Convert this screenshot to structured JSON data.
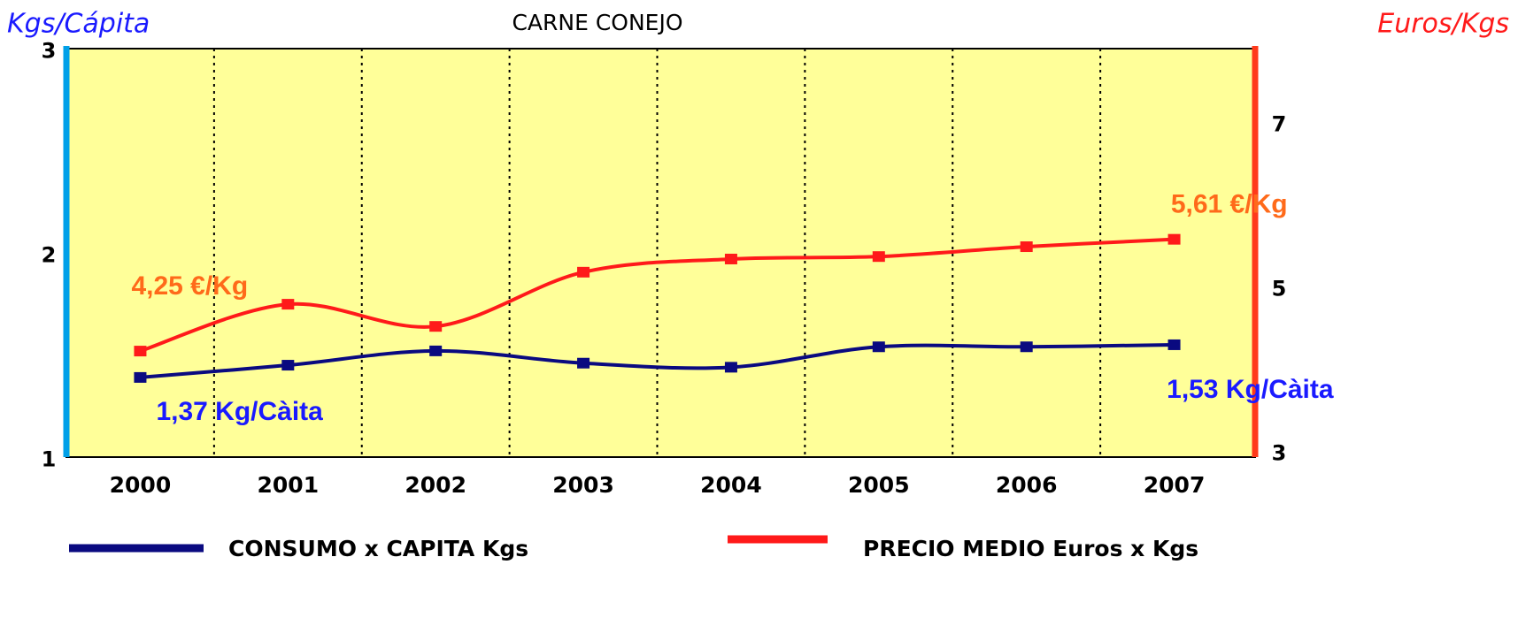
{
  "chart_data": {
    "type": "line",
    "title": "CARNE CONEJO",
    "y_label": "Kgs/Cápita",
    "y2_label": "Euros/Kgs",
    "categories": [
      "2000",
      "2001",
      "2002",
      "2003",
      "2004",
      "2005",
      "2006",
      "2007"
    ],
    "series": [
      {
        "name": "CONSUMO x CAPITA Kgs",
        "color": "#0a0a80",
        "values": [
          1.37,
          1.43,
          1.5,
          1.44,
          1.42,
          1.52,
          1.52,
          1.53
        ]
      },
      {
        "name": "PRECIO MEDIO Euros x Kgs",
        "color": "#ff1a1a",
        "axis": "y2",
        "values": [
          4.25,
          4.82,
          4.55,
          5.21,
          5.37,
          5.4,
          5.52,
          5.61
        ]
      }
    ],
    "annotations": [
      "1,37 Kg/Càita",
      "1,53 Kg/Càita",
      "4,25 €/Kg",
      "5,61 €/Kg"
    ],
    "ylim": [
      0.98,
      2.98
    ],
    "yticks": [
      1,
      2,
      3
    ],
    "y2lim": [
      2.96,
      7.93
    ],
    "y2ticks": [
      3,
      5,
      7
    ],
    "legend": "bottom"
  }
}
